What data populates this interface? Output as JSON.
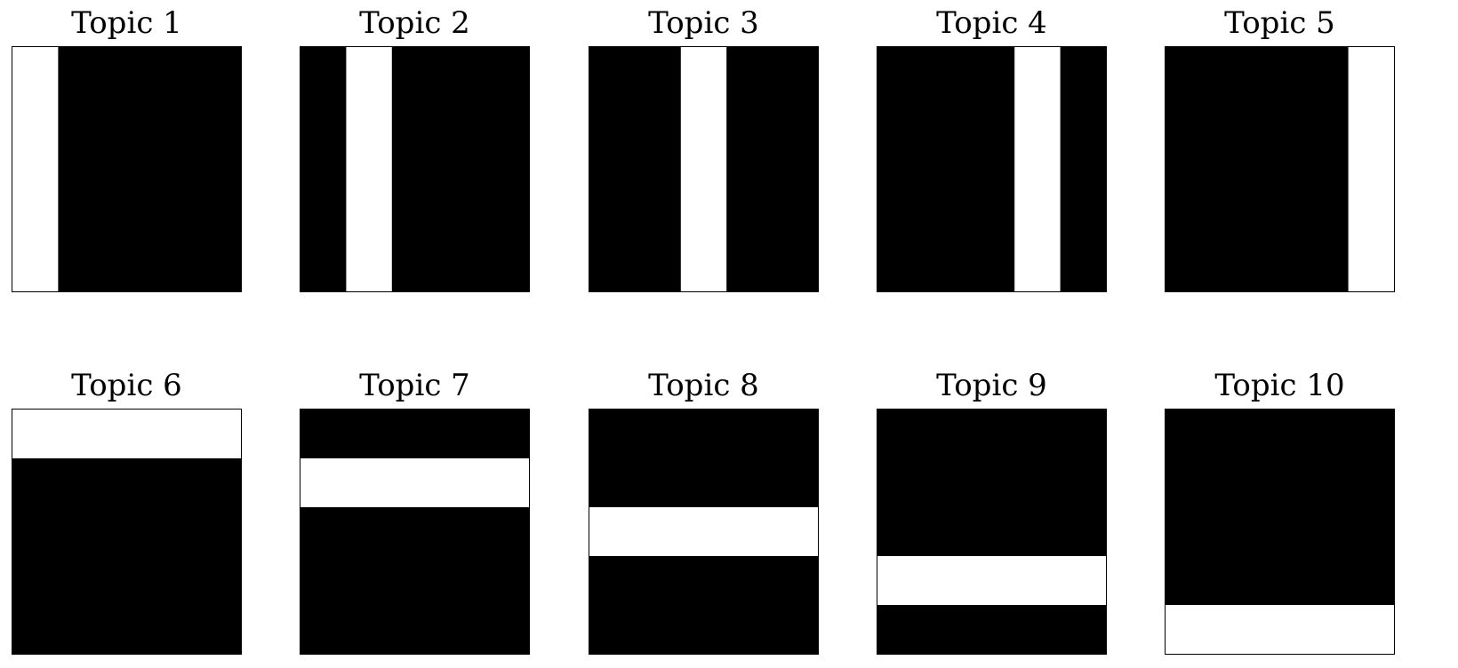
{
  "figure": {
    "background_color": "#ffffff",
    "on_color": "#000000",
    "off_color": "#ffffff",
    "grid_size": 5,
    "columns": 5,
    "panels": [
      {
        "title": "Topic 1",
        "orientation": "vertical",
        "stripe_index": 0
      },
      {
        "title": "Topic 2",
        "orientation": "vertical",
        "stripe_index": 1
      },
      {
        "title": "Topic 3",
        "orientation": "vertical",
        "stripe_index": 2
      },
      {
        "title": "Topic 4",
        "orientation": "vertical",
        "stripe_index": 3
      },
      {
        "title": "Topic 5",
        "orientation": "vertical",
        "stripe_index": 4
      },
      {
        "title": "Topic 6",
        "orientation": "horizontal",
        "stripe_index": 0
      },
      {
        "title": "Topic 7",
        "orientation": "horizontal",
        "stripe_index": 1
      },
      {
        "title": "Topic 8",
        "orientation": "horizontal",
        "stripe_index": 2
      },
      {
        "title": "Topic 9",
        "orientation": "horizontal",
        "stripe_index": 3
      },
      {
        "title": "Topic 10",
        "orientation": "horizontal",
        "stripe_index": 4
      }
    ]
  }
}
